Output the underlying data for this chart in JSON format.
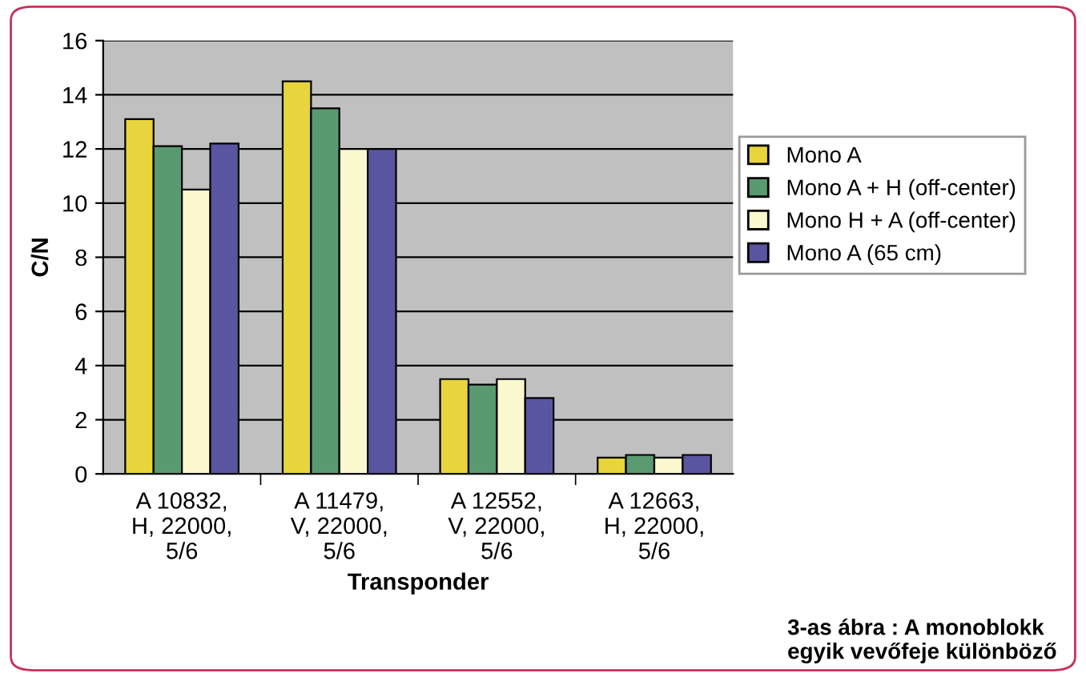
{
  "chart_data": {
    "type": "bar",
    "xlabel": "Transponder",
    "ylabel": "C/N",
    "categories": [
      "A 10832,\nH, 22000,\n5/6",
      "A 11479,\nV, 22000,\n5/6",
      "A 12552,\nV, 22000,\n5/6",
      "A 12663,\nH, 22000,\n5/6"
    ],
    "series": [
      {
        "name": "Mono A",
        "color": "#e8d43c",
        "values": [
          13.1,
          14.5,
          3.5,
          0.6
        ]
      },
      {
        "name": "Mono A + H (off-center)",
        "color": "#5a9a70",
        "values": [
          12.1,
          13.5,
          3.3,
          0.7
        ]
      },
      {
        "name": "Mono H + A (off-center)",
        "color": "#fbf8cf",
        "values": [
          10.5,
          12.0,
          3.5,
          0.6
        ]
      },
      {
        "name": "Mono A (65 cm)",
        "color": "#5a55a0",
        "values": [
          12.2,
          12.0,
          2.8,
          0.7
        ]
      }
    ],
    "ylim": [
      0,
      16
    ],
    "yticks": [
      0,
      2,
      4,
      6,
      8,
      10,
      12,
      14,
      16
    ],
    "grid": "y",
    "legend": "right",
    "annotations": [
      "3-as ábra : A monoblokk egyik vevőfeje különböző"
    ]
  }
}
